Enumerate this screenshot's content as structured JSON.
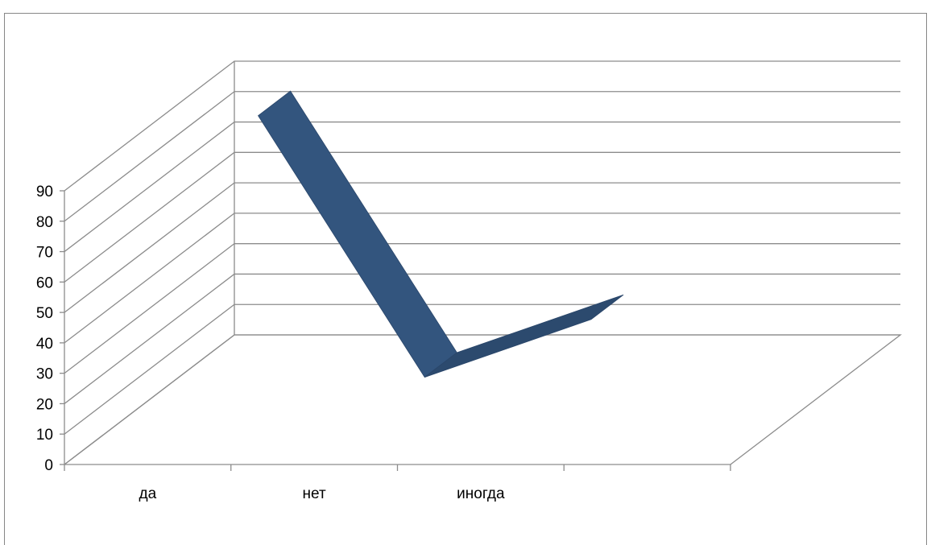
{
  "chart_data": {
    "type": "line",
    "title": "",
    "xlabel": "",
    "ylabel": "",
    "categories": [
      "да",
      "нет",
      "иногда"
    ],
    "series": [
      {
        "values": [
          87,
          1,
          20
        ]
      }
    ],
    "ylim": [
      0,
      90
    ],
    "yticks": [
      "0",
      "10",
      "20",
      "30",
      "40",
      "50",
      "60",
      "70",
      "80",
      "90"
    ],
    "grid": true,
    "three_d": true,
    "empty_category_slots": 1,
    "colors": {
      "series_front": "#33557E",
      "series_top": "#2C4A6E",
      "grid": "#8C8C8C",
      "axis_text": "#000000"
    }
  }
}
